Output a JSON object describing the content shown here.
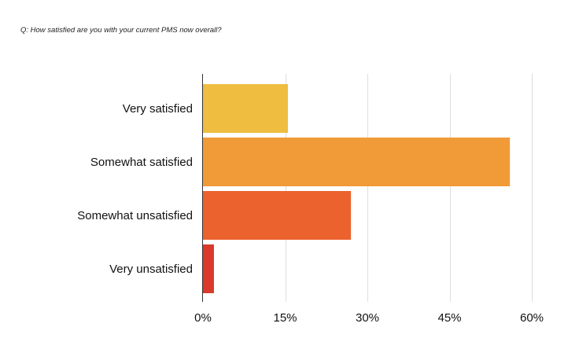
{
  "chart_data": {
    "type": "bar",
    "orientation": "horizontal",
    "title": "Q: How satisfied are you with your current PMS now overall?",
    "categories": [
      "Very satisfied",
      "Somewhat satisfied",
      "Somewhat unsatisfied",
      "Very unsatisfied"
    ],
    "values": [
      15.5,
      56,
      27,
      2
    ],
    "value_unit": "%",
    "colors": [
      "#EFBE40",
      "#F19A38",
      "#EC622F",
      "#D93A2B"
    ],
    "xlim": [
      0,
      60
    ],
    "x_ticks": [
      0,
      15,
      30,
      45,
      60
    ],
    "x_tick_labels": [
      "0%",
      "15%",
      "30%",
      "45%",
      "60%"
    ],
    "grid": "vertical",
    "grid_color": "#dddddd",
    "axis_color": "#333333",
    "legend": "none"
  }
}
